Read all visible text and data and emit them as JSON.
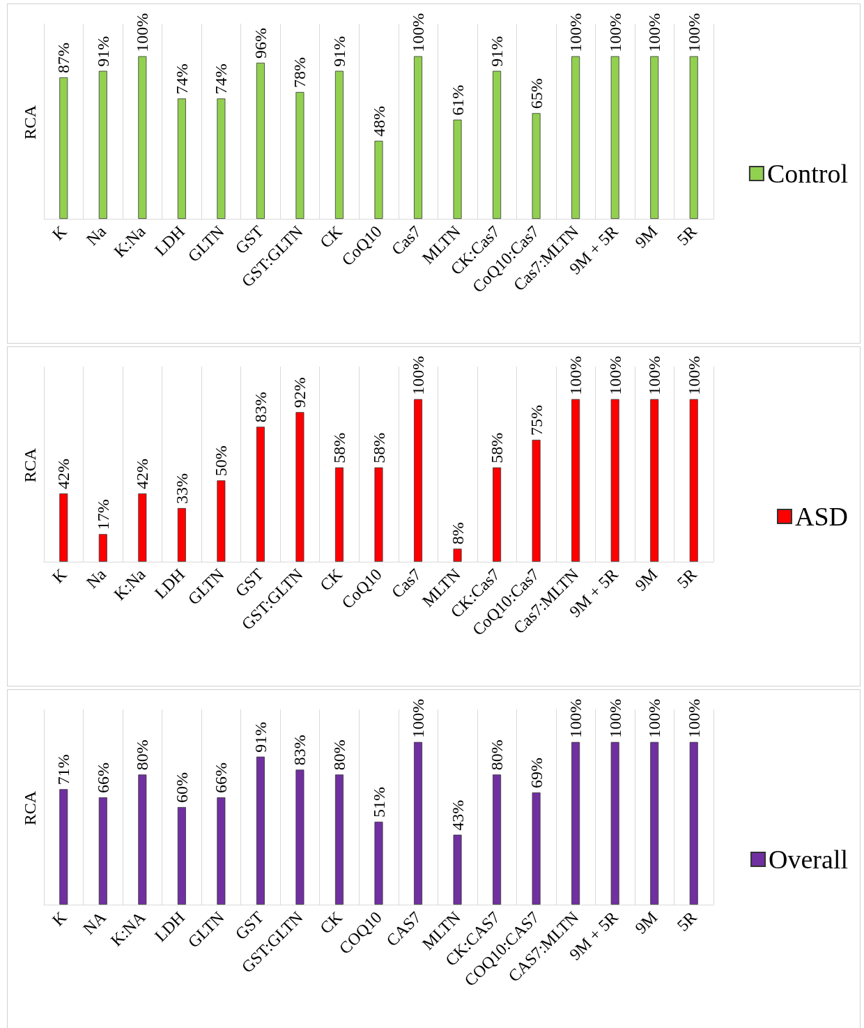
{
  "chart_data": [
    {
      "type": "bar",
      "ylabel": "RCA",
      "categories": [
        "K",
        "Na",
        "K:Na",
        "LDH",
        "GLTN",
        "GST",
        "GST:GLTN",
        "CK",
        "CoQ10",
        "Cas7",
        "MLTN",
        "CK:Cas7",
        "CoQ10:Cas7",
        "Cas7:MLTN",
        "9M + 5R",
        "9M",
        "5R"
      ],
      "grid": "x",
      "legend": "right",
      "series": [
        {
          "name": "Control",
          "color": "#92d050",
          "values": [
            87,
            91,
            100,
            74,
            74,
            96,
            78,
            91,
            48,
            100,
            61,
            91,
            65,
            100,
            100,
            100,
            100
          ],
          "value_labels": [
            "87%",
            "91%",
            "100%",
            "74%",
            "74%",
            "96%",
            "78%",
            "91%",
            "48%",
            "100%",
            "61%",
            "91%",
            "65%",
            "100%",
            "100%",
            "100%",
            "100%"
          ]
        }
      ]
    },
    {
      "type": "bar",
      "ylabel": "RCA",
      "categories": [
        "K",
        "Na",
        "K:Na",
        "LDH",
        "GLTN",
        "GST",
        "GST:GLTN",
        "CK",
        "CoQ10",
        "Cas7",
        "MLTN",
        "CK:Cas7",
        "CoQ10:Cas7",
        "Cas7:MLTN",
        "9M + 5R",
        "9M",
        "5R"
      ],
      "grid": "x",
      "legend": "right",
      "series": [
        {
          "name": "ASD",
          "color": "#ff0000",
          "values": [
            42,
            17,
            42,
            33,
            50,
            83,
            92,
            58,
            58,
            100,
            8,
            58,
            75,
            100,
            100,
            100,
            100
          ],
          "value_labels": [
            "42%",
            "17%",
            "42%",
            "33%",
            "50%",
            "83%",
            "92%",
            "58%",
            "58%",
            "100%",
            "8%",
            "58%",
            "75%",
            "100%",
            "100%",
            "100%",
            "100%"
          ]
        }
      ]
    },
    {
      "type": "bar",
      "ylabel": "RCA",
      "categories": [
        "K",
        "NA",
        "K:NA",
        "LDH",
        "GLTN",
        "GST",
        "GST:GLTN",
        "CK",
        "COQ10",
        "CAS7",
        "MLTN",
        "CK:CAS7",
        "COQ10:CAS7",
        "CAS7:MLTN",
        "9M + 5R",
        "9M",
        "5R"
      ],
      "grid": "x",
      "legend": "right",
      "series": [
        {
          "name": "Overall",
          "color": "#7030a0",
          "values": [
            71,
            66,
            80,
            60,
            66,
            91,
            83,
            80,
            51,
            100,
            43,
            80,
            69,
            100,
            100,
            100,
            100
          ],
          "value_labels": [
            "71%",
            "66%",
            "80%",
            "60%",
            "66%",
            "91%",
            "83%",
            "80%",
            "51%",
            "100%",
            "43%",
            "80%",
            "69%",
            "100%",
            "100%",
            "100%",
            "100%"
          ]
        }
      ]
    }
  ]
}
